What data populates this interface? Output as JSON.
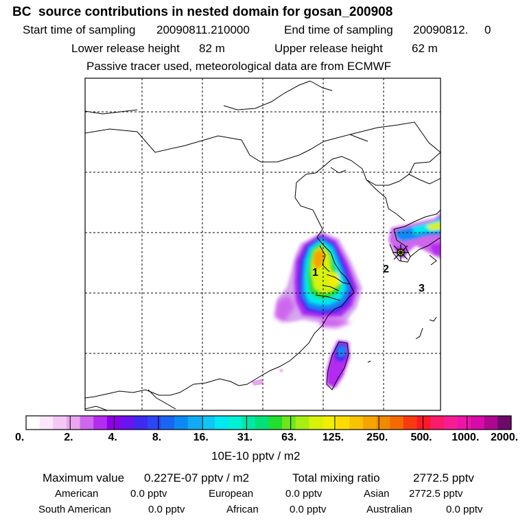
{
  "header": {
    "title": "BC  source contributions in nested domain for gosan_200908",
    "start_label": "Start time of sampling",
    "start_value": "20090811.210000",
    "end_label": "End time of sampling",
    "end_value": "20090812.     0",
    "lower_label": "Lower release height",
    "lower_value": "82 m",
    "upper_label": "Upper release height",
    "upper_value": "62 m",
    "note": "Passive tracer used, meteorological data are from ECMWF"
  },
  "map": {
    "site_labels": [
      "1",
      "2",
      "3"
    ]
  },
  "legend": {
    "tick_labels": [
      "0.",
      "2.",
      "4.",
      "8.",
      "16.",
      "31.",
      "63.",
      "125.",
      "250.",
      "500.",
      "1000.",
      "2000."
    ],
    "colors": [
      "#ffffff",
      "#fbe6fb",
      "#f4c8f4",
      "#eaa6ef",
      "#cf66ee",
      "#b52cf0",
      "#8f00e8",
      "#6a14f0",
      "#3f2af0",
      "#2c46f4",
      "#1a66f2",
      "#0b8af2",
      "#11aaf4",
      "#10c6f2",
      "#00e8f0",
      "#00f2d4",
      "#00e8a8",
      "#00e278",
      "#22de2e",
      "#6ee61a",
      "#a8ee12",
      "#d6f20a",
      "#f2ee00",
      "#fcdc00",
      "#f8c200",
      "#f6a400",
      "#f08a00",
      "#f46a00",
      "#f83a10",
      "#fc1828",
      "#fc1a6a",
      "#f81c94",
      "#ee14a8",
      "#d80aa8",
      "#ac0890",
      "#6e0a68"
    ],
    "unit": "10E-10 pptv / m2"
  },
  "stats": {
    "max_label": "Maximum value",
    "max_value": "0.227E-07 pptv / m2",
    "total_label": "Total mixing ratio",
    "total_value": "2772.5 pptv",
    "american_label": "American",
    "american_value": "0.0 pptv",
    "european_label": "European",
    "european_value": "0.0 pptv",
    "asian_label": "Asian",
    "asian_value": "2772.5 pptv",
    "south_american_label": "South American",
    "south_american_value": "0.0 pptv",
    "african_label": "African",
    "african_value": "0.0 pptv",
    "australian_label": "Australian",
    "australian_value": "0.0 pptv"
  }
}
